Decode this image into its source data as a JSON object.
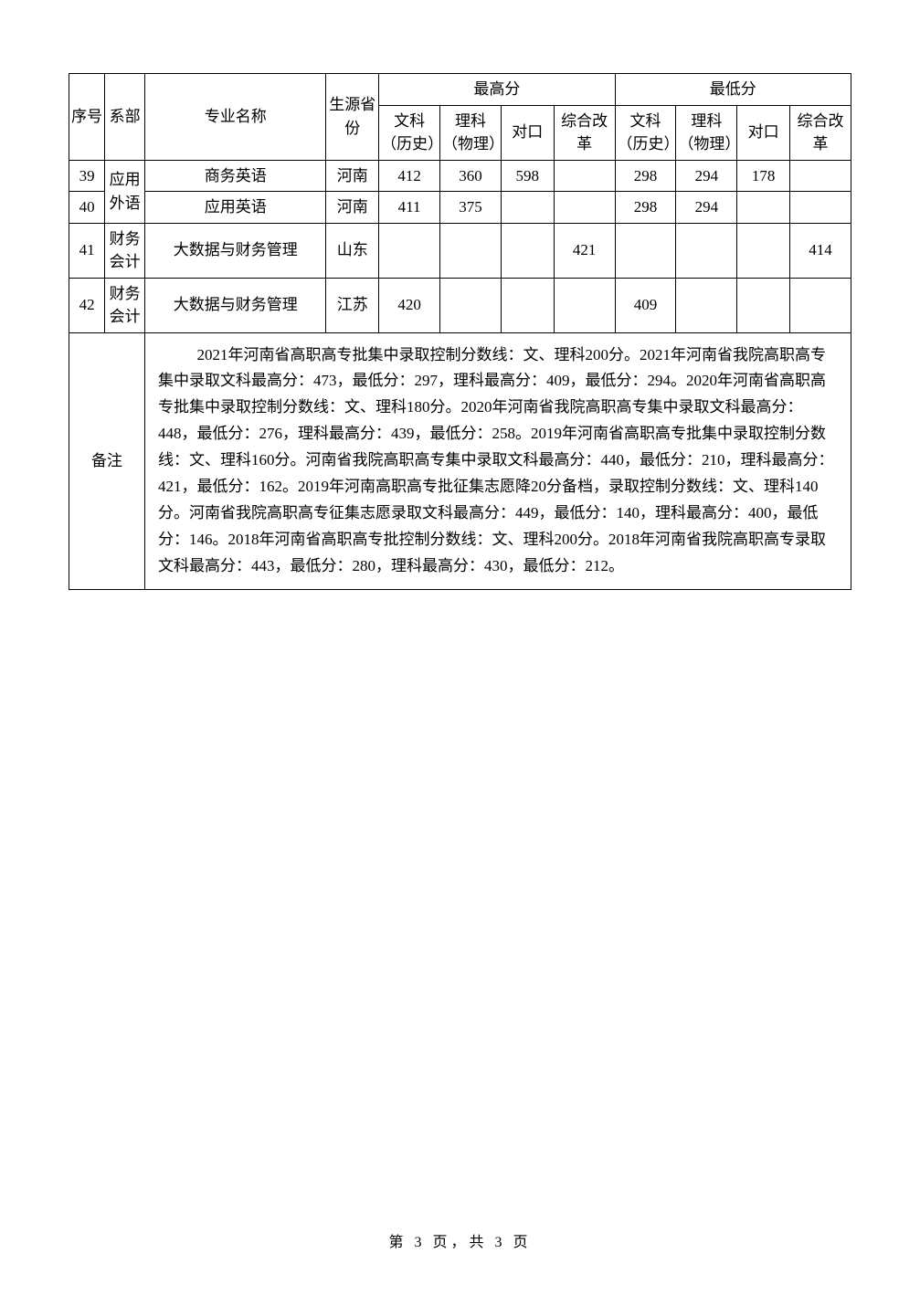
{
  "headers": {
    "seq": "序号",
    "dept": "系部",
    "major": "专业名称",
    "prov": "生源省份",
    "max": "最高分",
    "min": "最低分",
    "liberal": "文科（历史）",
    "science": "理科（物理）",
    "duikou": "对口",
    "reform": "综合改革"
  },
  "rows": [
    {
      "seq": "39",
      "dept": "应用外语",
      "major": "商务英语",
      "prov": "河南",
      "max_lib": "412",
      "max_sci": "360",
      "max_dk": "598",
      "max_rf": "",
      "min_lib": "298",
      "min_sci": "294",
      "min_dk": "178",
      "min_rf": ""
    },
    {
      "seq": "40",
      "dept": "",
      "major": "应用英语",
      "prov": "河南",
      "max_lib": "411",
      "max_sci": "375",
      "max_dk": "",
      "max_rf": "",
      "min_lib": "298",
      "min_sci": "294",
      "min_dk": "",
      "min_rf": ""
    },
    {
      "seq": "41",
      "dept": "财务会计",
      "major": "大数据与财务管理",
      "prov": "山东",
      "max_lib": "",
      "max_sci": "",
      "max_dk": "",
      "max_rf": "421",
      "min_lib": "",
      "min_sci": "",
      "min_dk": "",
      "min_rf": "414"
    },
    {
      "seq": "42",
      "dept": "财务会计",
      "major": "大数据与财务管理",
      "prov": "江苏",
      "max_lib": "420",
      "max_sci": "",
      "max_dk": "",
      "max_rf": "",
      "min_lib": "409",
      "min_sci": "",
      "min_dk": "",
      "min_rf": ""
    }
  ],
  "notes": {
    "label": "备注",
    "text": "2021年河南省高职高专批集中录取控制分数线：文、理科200分。2021年河南省我院高职高专集中录取文科最高分：473，最低分：297，理科最高分：409，最低分：294。2020年河南省高职高专批集中录取控制分数线：文、理科180分。2020年河南省我院高职高专集中录取文科最高分：448，最低分：276，理科最高分：439，最低分：258。2019年河南省高职高专批集中录取控制分数线：文、理科160分。河南省我院高职高专集中录取文科最高分：440，最低分：210，理科最高分：421，最低分：162。2019年河南高职高专批征集志愿降20分备档，录取控制分数线：文、理科140分。河南省我院高职高专征集志愿录取文科最高分：449，最低分：140，理科最高分：400，最低分：146。2018年河南省高职高专批控制分数线：文、理科200分。2018年河南省我院高职高专录取文科最高分：443，最低分：280，理科最高分：430，最低分：212。"
  },
  "footer": {
    "text": "第 3 页，共 3 页"
  }
}
